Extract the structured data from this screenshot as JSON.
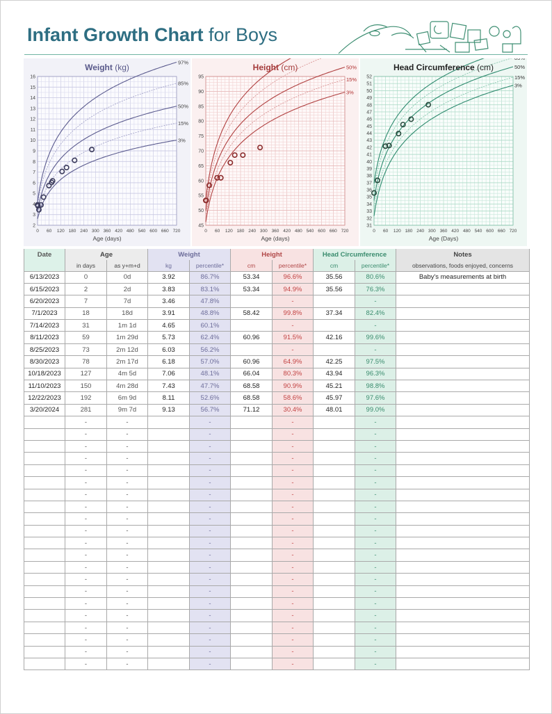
{
  "header": {
    "title_strong": "Infant Growth Chart",
    "title_rest": " for Boys"
  },
  "colors": {
    "title": "#2e6e82",
    "weight": "#59598a",
    "height": "#a43a3a",
    "head": "#2e8a6e"
  },
  "chart_data": [
    {
      "type": "line",
      "title": "Weight",
      "unit": "(kg)",
      "xlabel": "Age (days)",
      "ylabel": "",
      "xlim": [
        0,
        720
      ],
      "ylim": [
        2,
        16
      ],
      "x_ticks": [
        0,
        60,
        120,
        180,
        240,
        300,
        360,
        420,
        480,
        540,
        600,
        660,
        720
      ],
      "y_ticks": [
        2,
        3,
        4,
        5,
        6,
        7,
        8,
        9,
        10,
        11,
        12,
        13,
        14,
        15,
        16
      ],
      "percentile_labels": [
        "97%",
        "85%",
        "50%",
        "15%",
        "3%"
      ],
      "curve_params": {
        "p97": [
          4.2,
          9.4
        ],
        "p85": [
          3.9,
          8.2
        ],
        "p50": [
          3.35,
          7.05
        ],
        "p15": [
          2.95,
          6.2
        ],
        "p3": [
          2.6,
          5.3
        ]
      },
      "points": [
        [
          0,
          3.92
        ],
        [
          2,
          3.83
        ],
        [
          7,
          3.46
        ],
        [
          18,
          3.91
        ],
        [
          31,
          4.65
        ],
        [
          59,
          5.73
        ],
        [
          73,
          6.03
        ],
        [
          78,
          6.18
        ],
        [
          127,
          7.06
        ],
        [
          150,
          7.43
        ],
        [
          192,
          8.11
        ],
        [
          281,
          9.13
        ]
      ]
    },
    {
      "type": "line",
      "title": "Height",
      "unit": "(cm)",
      "xlabel": "Age (days)",
      "ylabel": "",
      "xlim": [
        0,
        720
      ],
      "ylim": [
        45,
        95
      ],
      "x_ticks": [
        0,
        60,
        120,
        180,
        240,
        300,
        360,
        420,
        480,
        540,
        600,
        660,
        720
      ],
      "y_ticks": [
        45,
        50,
        55,
        60,
        65,
        70,
        75,
        80,
        85,
        90,
        95
      ],
      "percentile_labels": [
        "97%",
        "85%",
        "50%",
        "15%",
        "3%"
      ],
      "curve_params": {
        "p97": [
          53.6,
          39.8
        ],
        "p85": [
          52.0,
          37.2
        ],
        "p50": [
          49.9,
          34.5
        ],
        "p15": [
          47.9,
          33.0
        ],
        "p3": [
          46.1,
          31.2
        ]
      },
      "points": [
        [
          0,
          53.34
        ],
        [
          2,
          53.34
        ],
        [
          18,
          58.42
        ],
        [
          59,
          60.96
        ],
        [
          78,
          60.96
        ],
        [
          127,
          66.04
        ],
        [
          150,
          68.58
        ],
        [
          192,
          68.58
        ],
        [
          281,
          71.12
        ]
      ]
    },
    {
      "type": "line",
      "title": "Head Circumference",
      "unit": "(cm)",
      "xlabel": "Age (Days)",
      "ylabel": "",
      "xlim": [
        0,
        720
      ],
      "ylim": [
        31,
        52
      ],
      "x_ticks": [
        0,
        60,
        120,
        180,
        240,
        300,
        360,
        420,
        480,
        540,
        600,
        660,
        720
      ],
      "y_ticks": [
        31,
        32,
        33,
        34,
        35,
        36,
        37,
        38,
        39,
        40,
        41,
        42,
        43,
        44,
        45,
        46,
        47,
        48,
        49,
        50,
        51,
        52
      ],
      "percentile_labels": [
        "97%",
        "85%",
        "50%",
        "15%",
        "3%"
      ],
      "curve_params": {
        "p97": [
          36.9,
          13.6
        ],
        "p85": [
          35.9,
          13.4
        ],
        "p50": [
          34.5,
          13.5
        ],
        "p15": [
          33.3,
          13.3
        ],
        "p3": [
          32.3,
          13.2
        ]
      },
      "points": [
        [
          0,
          35.56
        ],
        [
          18,
          37.34
        ],
        [
          59,
          42.16
        ],
        [
          78,
          42.25
        ],
        [
          127,
          43.94
        ],
        [
          150,
          45.21
        ],
        [
          192,
          45.97
        ],
        [
          281,
          48.01
        ]
      ]
    }
  ],
  "table": {
    "group_headers": {
      "date": "Date",
      "age": "Age",
      "weight": "Weight",
      "height": "Height",
      "head": "Head Circumference",
      "notes": "Notes"
    },
    "sub_headers": {
      "date": "",
      "age_days": "in days",
      "age_ymd": "as y+m+d",
      "w_kg": "kg",
      "w_pct": "percentile*",
      "h_cm": "cm",
      "h_pct": "percentile*",
      "hc_cm": "cm",
      "hc_pct": "percentile*",
      "notes": "observations, foods enjoyed, concerns"
    },
    "rows": [
      {
        "date": "6/13/2023",
        "days": "0",
        "ymd": "0d",
        "w": "3.92",
        "wp": "86.7%",
        "h": "53.34",
        "hp": "96.6%",
        "hc": "35.56",
        "hcp": "80.6%",
        "notes": "Baby's measurements at birth"
      },
      {
        "date": "6/15/2023",
        "days": "2",
        "ymd": "2d",
        "w": "3.83",
        "wp": "83.1%",
        "h": "53.34",
        "hp": "94.9%",
        "hc": "35.56",
        "hcp": "76.3%",
        "notes": ""
      },
      {
        "date": "6/20/2023",
        "days": "7",
        "ymd": "7d",
        "w": "3.46",
        "wp": "47.8%",
        "h": "",
        "hp": "-",
        "hc": "",
        "hcp": "-",
        "notes": ""
      },
      {
        "date": "7/1/2023",
        "days": "18",
        "ymd": "18d",
        "w": "3.91",
        "wp": "48.8%",
        "h": "58.42",
        "hp": "99.8%",
        "hc": "37.34",
        "hcp": "82.4%",
        "notes": ""
      },
      {
        "date": "7/14/2023",
        "days": "31",
        "ymd": "1m 1d",
        "w": "4.65",
        "wp": "60.1%",
        "h": "",
        "hp": "-",
        "hc": "",
        "hcp": "-",
        "notes": ""
      },
      {
        "date": "8/11/2023",
        "days": "59",
        "ymd": "1m 29d",
        "w": "5.73",
        "wp": "62.4%",
        "h": "60.96",
        "hp": "91.5%",
        "hc": "42.16",
        "hcp": "99.6%",
        "notes": ""
      },
      {
        "date": "8/25/2023",
        "days": "73",
        "ymd": "2m 12d",
        "w": "6.03",
        "wp": "56.2%",
        "h": "",
        "hp": "-",
        "hc": "",
        "hcp": "-",
        "notes": ""
      },
      {
        "date": "8/30/2023",
        "days": "78",
        "ymd": "2m 17d",
        "w": "6.18",
        "wp": "57.0%",
        "h": "60.96",
        "hp": "64.9%",
        "hc": "42.25",
        "hcp": "97.5%",
        "notes": ""
      },
      {
        "date": "10/18/2023",
        "days": "127",
        "ymd": "4m 5d",
        "w": "7.06",
        "wp": "48.1%",
        "h": "66.04",
        "hp": "80.3%",
        "hc": "43.94",
        "hcp": "96.3%",
        "notes": ""
      },
      {
        "date": "11/10/2023",
        "days": "150",
        "ymd": "4m 28d",
        "w": "7.43",
        "wp": "47.7%",
        "h": "68.58",
        "hp": "90.9%",
        "hc": "45.21",
        "hcp": "98.8%",
        "notes": ""
      },
      {
        "date": "12/22/2023",
        "days": "192",
        "ymd": "6m 9d",
        "w": "8.11",
        "wp": "52.6%",
        "h": "68.58",
        "hp": "58.6%",
        "hc": "45.97",
        "hcp": "97.6%",
        "notes": ""
      },
      {
        "date": "3/20/2024",
        "days": "281",
        "ymd": "9m 7d",
        "w": "9.13",
        "wp": "56.7%",
        "h": "71.12",
        "hp": "30.4%",
        "hc": "48.01",
        "hcp": "99.0%",
        "notes": ""
      }
    ],
    "empty_row_count": 21,
    "empty_cell": "-"
  }
}
